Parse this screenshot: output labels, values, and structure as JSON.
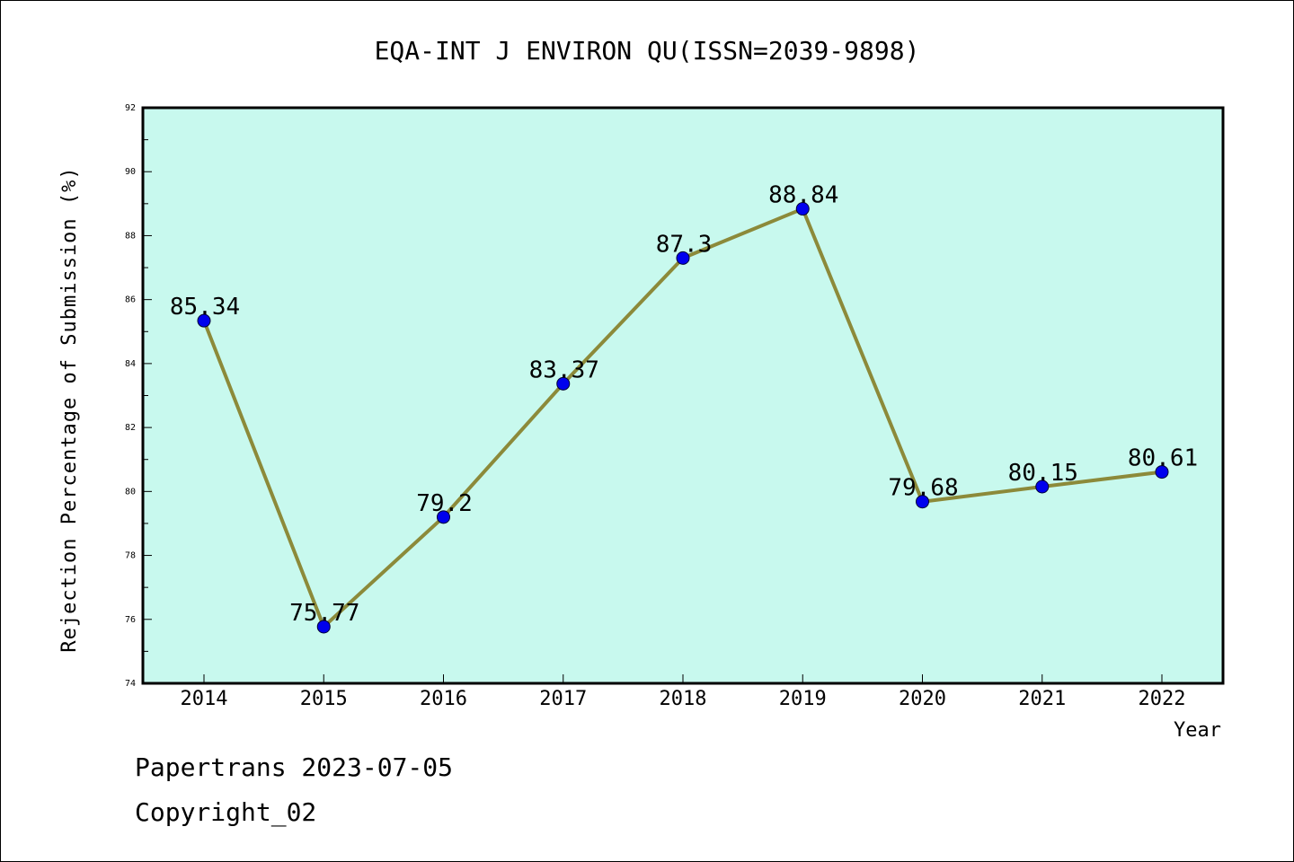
{
  "chart_data": {
    "type": "line",
    "title": "EQA-INT J ENVIRON QU(ISSN=2039-9898)",
    "xlabel": "Year",
    "ylabel": "Rejection Percentage of Submission (%)",
    "categories": [
      "2014",
      "2015",
      "2016",
      "2017",
      "2018",
      "2019",
      "2020",
      "2021",
      "2022"
    ],
    "values": [
      85.34,
      75.77,
      79.2,
      83.37,
      87.3,
      88.84,
      79.68,
      80.15,
      80.61
    ],
    "data_labels": [
      "85.34",
      "75.77",
      "79.2",
      "83.37",
      "87.3",
      "88.84",
      "79.68",
      "80.15",
      "80.61"
    ],
    "ylim": [
      74,
      92
    ],
    "yticks": [
      "74",
      "76",
      "78",
      "80",
      "82",
      "84",
      "86",
      "88",
      "90",
      "92"
    ],
    "grid": false,
    "colors": {
      "plot_background": "#c8f9ee",
      "line": "#8c8a3a",
      "marker": "#0000ee",
      "frame": "#000000"
    }
  },
  "footer": {
    "line1": "Papertrans 2023-07-05",
    "line2": "Copyright_02"
  }
}
